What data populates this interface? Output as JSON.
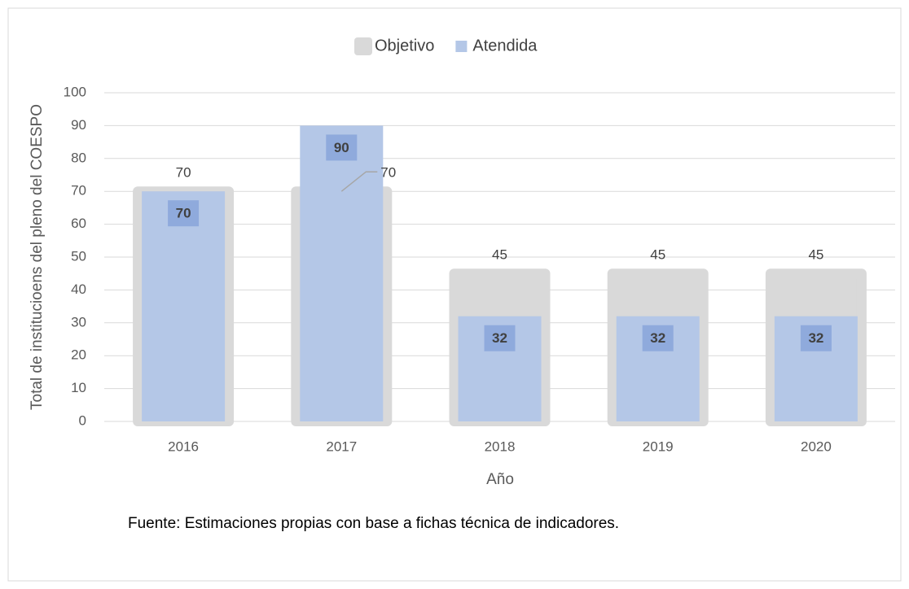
{
  "chart_data": {
    "type": "bar",
    "categories": [
      "2016",
      "2017",
      "2018",
      "2019",
      "2020"
    ],
    "series": [
      {
        "name": "Objetivo",
        "color": "#d9d9d9",
        "values": [
          70,
          70,
          45,
          45,
          45
        ]
      },
      {
        "name": "Atendida",
        "color": "#b4c7e7",
        "values": [
          70,
          90,
          32,
          32,
          32
        ]
      }
    ],
    "ylim": [
      0,
      100
    ],
    "yticks": [
      0,
      10,
      20,
      30,
      40,
      50,
      60,
      70,
      80,
      90,
      100
    ],
    "grid": true,
    "y_label": "Total de  institucioens del pleno del COESPO",
    "x_label": "Año",
    "legend": "top",
    "note": "Fuente: Estimaciones propias con base a fichas técnica de indicadores."
  }
}
